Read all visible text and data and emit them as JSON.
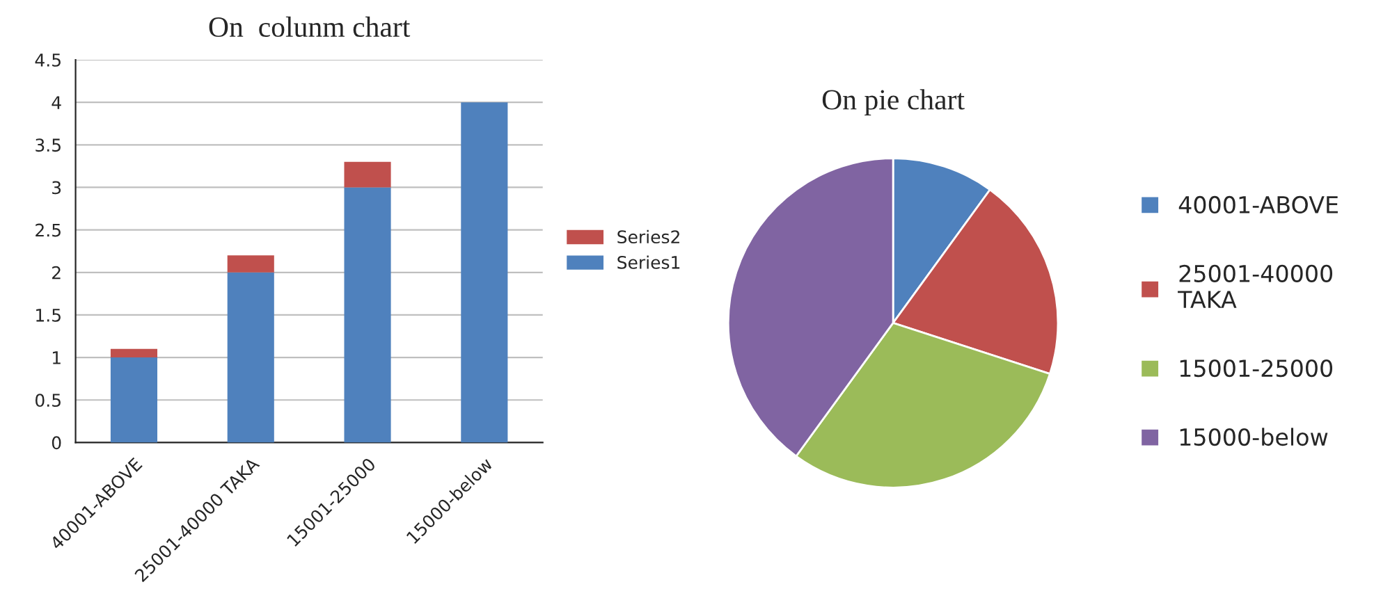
{
  "chart_data": [
    {
      "type": "bar",
      "title": "On  colunm chart",
      "stacked": true,
      "categories": [
        "40001-ABOVE",
        "25001-40000 TAKA",
        "15001-25000",
        "15000-below"
      ],
      "series": [
        {
          "name": "Series1",
          "color": "#4f81bd",
          "values": [
            1,
            2,
            3,
            4
          ]
        },
        {
          "name": "Series2",
          "color": "#c0504d",
          "values": [
            0.1,
            0.2,
            0.3,
            null
          ]
        }
      ],
      "ylim": [
        0,
        4.5
      ],
      "yticks": [
        0,
        0.5,
        1,
        1.5,
        2,
        2.5,
        3,
        3.5,
        4,
        4.5
      ],
      "grid": "y",
      "legend": "right"
    },
    {
      "type": "pie",
      "title": "On pie chart",
      "categories": [
        "40001-ABOVE",
        "25001-40000\nTAKA",
        "15001-25000",
        "15000-below"
      ],
      "values": [
        10,
        20,
        30,
        40
      ],
      "colors": [
        "#4f81bd",
        "#c0504d",
        "#9bbb59",
        "#8064a2"
      ],
      "legend": "right"
    }
  ]
}
